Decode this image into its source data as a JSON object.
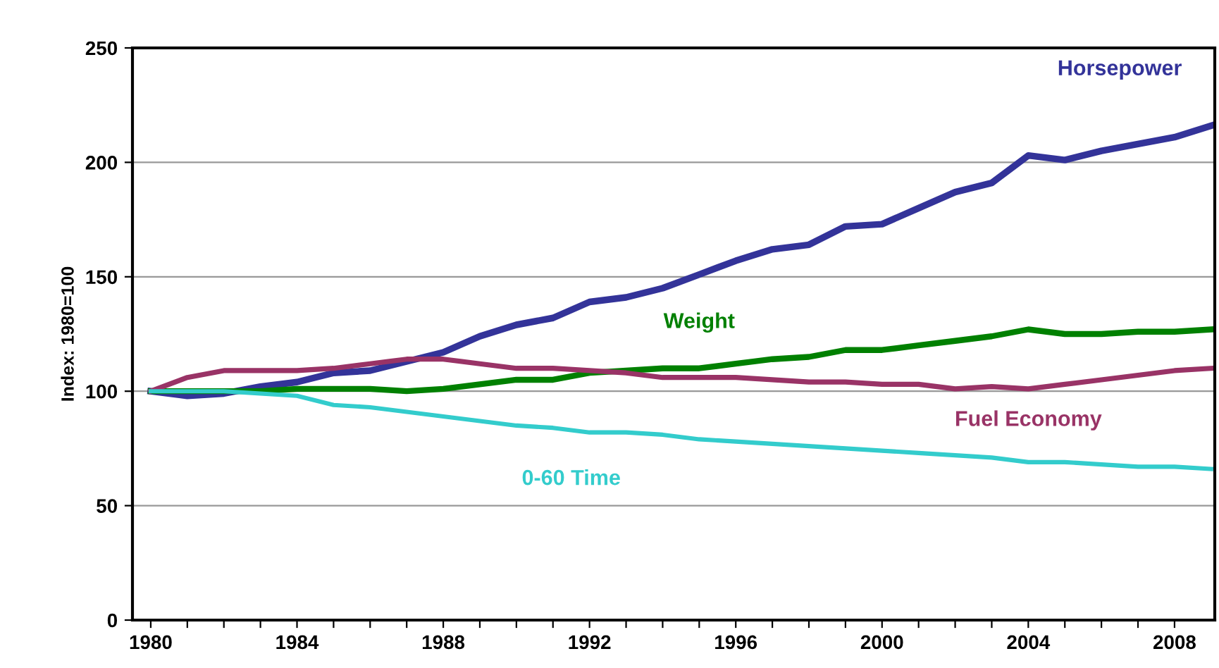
{
  "chart_data": {
    "type": "line",
    "ylabel": "Index: 1980=100",
    "x": [
      1980,
      1981,
      1982,
      1983,
      1984,
      1985,
      1986,
      1987,
      1988,
      1989,
      1990,
      1991,
      1992,
      1993,
      1994,
      1995,
      1996,
      1997,
      1998,
      1999,
      2000,
      2001,
      2002,
      2003,
      2004,
      2005,
      2006,
      2007,
      2008,
      2009
    ],
    "series": [
      {
        "name": "Horsepower",
        "color": "#333399",
        "values": [
          100,
          98,
          99,
          102,
          104,
          108,
          109,
          113,
          117,
          124,
          129,
          132,
          139,
          141,
          145,
          151,
          157,
          162,
          164,
          172,
          173,
          180,
          187,
          191,
          203,
          201,
          205,
          208,
          211,
          216
        ]
      },
      {
        "name": "Weight",
        "color": "#008000",
        "values": [
          100,
          100,
          100,
          100,
          101,
          101,
          101,
          100,
          101,
          103,
          105,
          105,
          108,
          109,
          110,
          110,
          112,
          114,
          115,
          118,
          118,
          120,
          122,
          124,
          127,
          125,
          125,
          126,
          126,
          127
        ]
      },
      {
        "name": "Fuel Economy",
        "color": "#993366",
        "values": [
          100,
          106,
          109,
          109,
          109,
          110,
          112,
          114,
          114,
          112,
          110,
          110,
          109,
          108,
          106,
          106,
          106,
          105,
          104,
          104,
          103,
          103,
          101,
          102,
          101,
          103,
          105,
          107,
          109,
          110
        ]
      },
      {
        "name": "0-60 Time",
        "color": "#33cccc",
        "values": [
          100,
          100,
          100,
          99,
          98,
          94,
          93,
          91,
          89,
          87,
          85,
          84,
          82,
          82,
          81,
          79,
          78,
          77,
          76,
          75,
          74,
          73,
          72,
          71,
          69,
          69,
          68,
          67,
          67,
          66
        ]
      }
    ],
    "xlim": [
      1979.5,
      2009.1
    ],
    "xticks": [
      1980,
      {
        "value": 1981,
        "label": null
      },
      {
        "value": 1982,
        "label": null
      },
      {
        "value": 1983,
        "label": null
      },
      1984,
      {
        "value": 1985,
        "label": null
      },
      {
        "value": 1986,
        "label": null
      },
      {
        "value": 1987,
        "label": null
      },
      1988,
      {
        "value": 1989,
        "label": null
      },
      {
        "value": 1990,
        "label": null
      },
      {
        "value": 1991,
        "label": null
      },
      1992,
      {
        "value": 1993,
        "label": null
      },
      {
        "value": 1994,
        "label": null
      },
      {
        "value": 1995,
        "label": null
      },
      1996,
      {
        "value": 1997,
        "label": null
      },
      {
        "value": 1998,
        "label": null
      },
      {
        "value": 1999,
        "label": null
      },
      2000,
      {
        "value": 2001,
        "label": null
      },
      {
        "value": 2002,
        "label": null
      },
      {
        "value": 2003,
        "label": null
      },
      2004,
      {
        "value": 2005,
        "label": null
      },
      {
        "value": 2006,
        "label": null
      },
      {
        "value": 2007,
        "label": null
      },
      2008
    ],
    "ylim": [
      0,
      250
    ],
    "yticks": [
      0,
      50,
      100,
      150,
      200,
      250
    ],
    "grid": "y",
    "marker": "none",
    "line_style": "solid",
    "legend": false
  }
}
